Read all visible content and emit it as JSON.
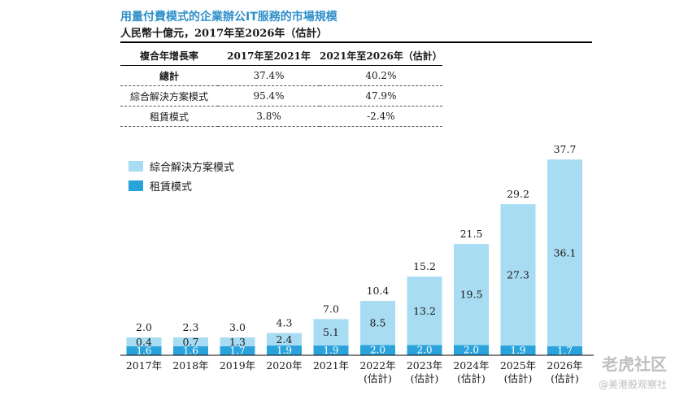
{
  "header": {
    "title": "用量付費模式的企業辦公IT服務的市場規模",
    "subtitle": "人民幣十億元，2017年至2026年（估計）"
  },
  "cagr_table": {
    "headers": [
      "複合年增長率",
      "2017年至2021年",
      "2021年至2026年（估計）"
    ],
    "rows": [
      {
        "label": "總計",
        "v1": "37.4%",
        "v2": "40.2%"
      },
      {
        "label": "綜合解決方案模式",
        "v1": "95.4%",
        "v2": "47.9%"
      },
      {
        "label": "租賃模式",
        "v1": "3.8%",
        "v2": "-2.4%"
      }
    ]
  },
  "chart_data": {
    "type": "bar",
    "stacked": true,
    "categories": [
      "2017年",
      "2018年",
      "2019年",
      "2020年",
      "2021年",
      "2022年\n(估計)",
      "2023年\n(估計)",
      "2024年\n(估計)",
      "2025年\n(估計)",
      "2026年\n(估計)"
    ],
    "series": [
      {
        "name": "租賃模式",
        "color": "#2aa3dc",
        "values": [
          1.6,
          1.6,
          1.7,
          1.9,
          1.9,
          2.0,
          2.0,
          2.0,
          1.9,
          1.7
        ],
        "labels": [
          "1.6",
          "1.6",
          "1.7",
          "1.9",
          "1.9",
          "2.0",
          "2.0",
          "2.0",
          "1.9",
          "1.7"
        ]
      },
      {
        "name": "綜合解決方案模式",
        "color": "#a8dcf2",
        "values": [
          0.4,
          0.7,
          1.3,
          2.4,
          5.1,
          8.5,
          13.2,
          19.5,
          27.3,
          36.1
        ],
        "labels": [
          "0.4",
          "0.7",
          "1.3",
          "2.4",
          "5.1",
          "8.5",
          "13.2",
          "19.5",
          "27.3",
          "36.1"
        ]
      }
    ],
    "totals": [
      "2.0",
      "2.3",
      "3.0",
      "4.3",
      "7.0",
      "10.4",
      "15.2",
      "21.5",
      "29.2",
      "37.7"
    ],
    "ylim": [
      0,
      37.7
    ]
  },
  "watermark": {
    "text": "老虎社区",
    "subtext": "@美港股观察社"
  }
}
